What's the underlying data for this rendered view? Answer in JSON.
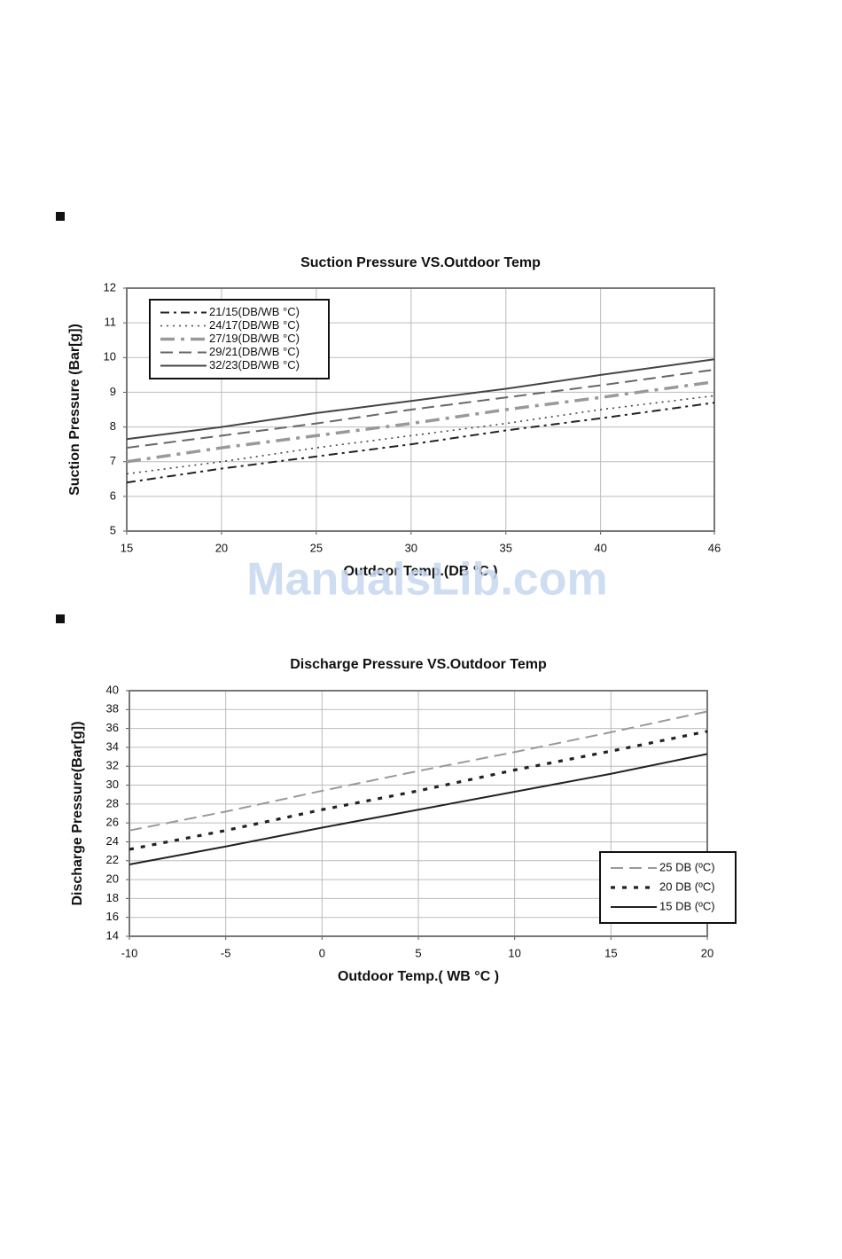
{
  "watermark": "ManualsLib.com",
  "chart_data": [
    {
      "type": "line",
      "title": "Suction Pressure VS.Outdoor Temp",
      "xlabel": "Outdoor Temp.(DB °C )",
      "ylabel": "Suction Pressure (Bar[g])",
      "x": [
        15,
        20,
        25,
        30,
        35,
        40,
        46
      ],
      "xlim": [
        15,
        46
      ],
      "xticks": [
        15,
        20,
        25,
        30,
        35,
        40,
        46
      ],
      "ylim": [
        5,
        12
      ],
      "yticks": [
        5,
        6,
        7,
        8,
        9,
        10,
        11,
        12
      ],
      "grid": true,
      "legend": "upper left",
      "series": [
        {
          "name": "21/15(DB/WB °C)",
          "color": "#222222",
          "style": "dashdot",
          "values": [
            6.4,
            6.8,
            7.15,
            7.5,
            7.9,
            8.25,
            8.7
          ]
        },
        {
          "name": "24/17(DB/WB °C)",
          "color": "#444444",
          "style": "dotted",
          "values": [
            6.65,
            7.0,
            7.4,
            7.75,
            8.1,
            8.5,
            8.9
          ]
        },
        {
          "name": "27/19(DB/WB °C)",
          "color": "#999999",
          "style": "dashdot-heavy",
          "values": [
            7.0,
            7.4,
            7.75,
            8.1,
            8.5,
            8.85,
            9.3
          ]
        },
        {
          "name": "29/21(DB/WB °C)",
          "color": "#666666",
          "style": "dashed",
          "values": [
            7.4,
            7.75,
            8.1,
            8.5,
            8.85,
            9.2,
            9.65
          ]
        },
        {
          "name": "32/23(DB/WB °C)",
          "color": "#444444",
          "style": "solid",
          "values": [
            7.65,
            8.0,
            8.4,
            8.75,
            9.1,
            9.5,
            9.95
          ]
        }
      ]
    },
    {
      "type": "line",
      "title": "Discharge Pressure VS.Outdoor Temp",
      "xlabel": "Outdoor Temp.( WB °C )",
      "ylabel": "Discharge Pressure(Bar[g])",
      "x": [
        -10,
        -5,
        0,
        5,
        10,
        15,
        20
      ],
      "xlim": [
        -10,
        20
      ],
      "xticks": [
        -10,
        -5,
        0,
        5,
        10,
        15,
        20
      ],
      "ylim": [
        14,
        40
      ],
      "yticks": [
        14,
        16,
        18,
        20,
        22,
        24,
        26,
        28,
        30,
        32,
        34,
        36,
        38,
        40
      ],
      "grid": true,
      "legend": "lower right",
      "series": [
        {
          "name": "25 DB (ºC)",
          "color": "#999999",
          "style": "dashed",
          "values": [
            25.2,
            27.2,
            29.4,
            31.5,
            33.5,
            35.6,
            37.8
          ]
        },
        {
          "name": "20 DB (ºC)",
          "color": "#222222",
          "style": "dotted-heavy",
          "values": [
            23.2,
            25.2,
            27.4,
            29.4,
            31.6,
            33.6,
            35.7
          ]
        },
        {
          "name": "15 DB (ºC)",
          "color": "#222222",
          "style": "solid",
          "values": [
            21.6,
            23.5,
            25.5,
            27.4,
            29.3,
            31.2,
            33.3
          ]
        }
      ]
    }
  ]
}
